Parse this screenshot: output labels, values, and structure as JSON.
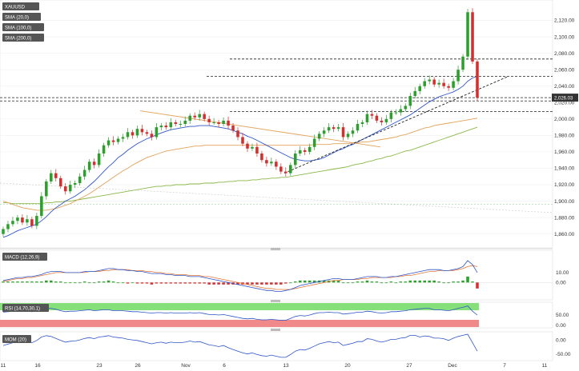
{
  "symbol": "XAUUSD",
  "colors": {
    "up": "#2e9e2e",
    "down": "#d32f2f",
    "sma20": "#2f55c8",
    "sma100": "#e2a25c",
    "sma200": "#8ab84a",
    "macd_line": "#2f55c8",
    "macd_signal": "#e0783a",
    "rsi_line": "#2f55c8",
    "rsi_upper_band": "#86e07a",
    "rsi_lower_band": "#f08a8a",
    "mom_line": "#2f55c8",
    "price_tag": "#333333"
  },
  "legend": [
    {
      "label": "XAUUSD"
    },
    {
      "label": "SMA (20,0)"
    },
    {
      "label": "SMA (100,0)"
    },
    {
      "label": "SMA (200,0)"
    }
  ],
  "last_price_label": "2,026.03",
  "price_axis_ticks": [
    "2,120.00",
    "2,100.00",
    "2,080.00",
    "2,060.00",
    "2,040.00",
    "2,020.00",
    "2,000.00",
    "1,980.00",
    "1,960.00",
    "1,940.00",
    "1,920.00",
    "1,900.00",
    "1,880.00",
    "1,860.00"
  ],
  "x_axis_ticks": [
    "11",
    "16",
    "23",
    "26",
    "Nov",
    "6",
    "13",
    "20",
    "27",
    "Dec",
    "7",
    "11"
  ],
  "macd": {
    "label": "MACD (12,26,9)",
    "ticks": [
      "10.00",
      "0.00"
    ]
  },
  "rsi": {
    "label": "RSI (14,70,30,1)",
    "ticks": [
      "50.00",
      "0.00"
    ]
  },
  "mom": {
    "label": "MOM (20)",
    "ticks": [
      "0.00",
      "-50.00"
    ]
  },
  "chart_data": {
    "type": "candlestick",
    "instrument": "XAUUSD",
    "x_ticks": [
      "11",
      "16",
      "23",
      "26",
      "Nov",
      "6",
      "13",
      "20",
      "27",
      "Dec",
      "7",
      "11"
    ],
    "ylim": [
      1848,
      2140
    ],
    "close": [
      1866,
      1872,
      1876,
      1880,
      1874,
      1878,
      1870,
      1882,
      1906,
      1924,
      1934,
      1928,
      1918,
      1912,
      1920,
      1922,
      1930,
      1938,
      1948,
      1944,
      1958,
      1968,
      1974,
      1972,
      1976,
      1978,
      1984,
      1980,
      1988,
      1984,
      1982,
      1978,
      1990,
      1992,
      1990,
      1996,
      1994,
      1994,
      1998,
      2004,
      2002,
      2006,
      2000,
      1996,
      1996,
      1994,
      1998,
      1992,
      1986,
      1978,
      1970,
      1964,
      1966,
      1958,
      1950,
      1946,
      1948,
      1942,
      1936,
      1934,
      1944,
      1958,
      1962,
      1960,
      1966,
      1976,
      1982,
      1986,
      1990,
      1988,
      1990,
      1978,
      1982,
      1986,
      1994,
      1996,
      2006,
      2004,
      1998,
      1996,
      2000,
      2008,
      2008,
      2012,
      2016,
      2028,
      2034,
      2040,
      2046,
      2048,
      2042,
      2044,
      2040,
      2038,
      2046,
      2060,
      2076,
      2130,
      2070,
      2026
    ],
    "sma20": [
      1856,
      1858,
      1861,
      1864,
      1866,
      1868,
      1870,
      1872,
      1876,
      1881,
      1887,
      1892,
      1896,
      1900,
      1903,
      1906,
      1910,
      1914,
      1919,
      1924,
      1930,
      1936,
      1942,
      1947,
      1953,
      1957,
      1962,
      1966,
      1970,
      1973,
      1976,
      1978,
      1981,
      1983,
      1985,
      1987,
      1988,
      1989,
      1990,
      1991,
      1991,
      1992,
      1992,
      1992,
      1991,
      1990,
      1989,
      1988,
      1986,
      1984,
      1982,
      1979,
      1977,
      1974,
      1971,
      1968,
      1965,
      1962,
      1959,
      1956,
      1953,
      1951,
      1950,
      1949,
      1949,
      1950,
      1951,
      1953,
      1956,
      1959,
      1962,
      1964,
      1967,
      1969,
      1972,
      1975,
      1978,
      1981,
      1984,
      1987,
      1990,
      1993,
      1996,
      1999,
      2002,
      2005,
      2009,
      2013,
      2017,
      2021,
      2024,
      2027,
      2029,
      2031,
      2033,
      2036,
      2040,
      2046,
      2050,
      2052
    ],
    "sma100": [
      1900,
      1898,
      1896,
      1894,
      1892,
      1891,
      1890,
      1889,
      1889,
      1889,
      1890,
      1891,
      1893,
      1895,
      1897,
      1900,
      1903,
      1906,
      1909,
      1913,
      1917,
      1921,
      1925,
      1929,
      1933,
      1937,
      1940,
      1944,
      1947,
      1950,
      1953,
      1955,
      1957,
      1959,
      1961,
      1962,
      1963,
      1964,
      1965,
      1966,
      1967,
      1967,
      1968,
      1968,
      1968,
      1968,
      1968,
      1968,
      1968,
      1968,
      1968,
      1968,
      1968,
      1968,
      1968,
      1968,
      1968,
      1968,
      1968,
      1968,
      1968,
      1968,
      1968,
      1968,
      1968,
      1969,
      1969,
      1969,
      1969,
      1970,
      1970,
      1970,
      1970,
      1971,
      1971,
      1972,
      1972,
      1973,
      1974,
      1975,
      1976,
      1977,
      1978,
      1980,
      1981,
      1983,
      1985,
      1987,
      1989,
      1990,
      1992,
      1993,
      1994,
      1995,
      1996,
      1997,
      1998,
      1999,
      2000,
      2001
    ],
    "sma200": [
      1898,
      1898,
      1897,
      1897,
      1897,
      1897,
      1897,
      1897,
      1897,
      1898,
      1898,
      1899,
      1899,
      1900,
      1900,
      1901,
      1902,
      1903,
      1904,
      1905,
      1906,
      1907,
      1908,
      1909,
      1910,
      1911,
      1912,
      1913,
      1914,
      1915,
      1916,
      1917,
      1918,
      1918,
      1919,
      1919,
      1920,
      1920,
      1920,
      1921,
      1921,
      1921,
      1922,
      1922,
      1922,
      1923,
      1923,
      1924,
      1924,
      1925,
      1925,
      1925,
      1926,
      1926,
      1927,
      1927,
      1928,
      1928,
      1929,
      1929,
      1930,
      1931,
      1932,
      1933,
      1934,
      1935,
      1936,
      1937,
      1938,
      1939,
      1940,
      1941,
      1942,
      1944,
      1945,
      1946,
      1948,
      1949,
      1951,
      1952,
      1954,
      1955,
      1957,
      1959,
      1961,
      1962,
      1964,
      1966,
      1968,
      1970,
      1972,
      1974,
      1976,
      1978,
      1980,
      1982,
      1984,
      1986,
      1988,
      1990
    ],
    "horizontal_levels": [
      2073,
      2052,
      2022,
      2026,
      2009
    ],
    "macd": {
      "ylim": [
        -15,
        30
      ],
      "line": [
        2,
        3,
        4,
        5,
        5,
        6,
        6,
        7,
        8,
        10,
        11,
        11,
        11,
        10,
        10,
        10,
        10,
        11,
        11,
        11,
        12,
        13,
        14,
        14,
        13,
        13,
        12,
        12,
        11,
        11,
        10,
        9,
        9,
        9,
        8,
        8,
        7,
        7,
        7,
        6,
        6,
        6,
        5,
        4,
        3,
        2,
        1,
        0,
        -1,
        -2,
        -3,
        -4,
        -5,
        -6,
        -7,
        -8,
        -8,
        -9,
        -9,
        -8,
        -7,
        -5,
        -3,
        -2,
        -1,
        0,
        1,
        2,
        3,
        4,
        4,
        3,
        3,
        3,
        4,
        5,
        6,
        6,
        6,
        5,
        5,
        6,
        6,
        7,
        8,
        9,
        10,
        11,
        12,
        13,
        13,
        13,
        12,
        12,
        13,
        14,
        16,
        22,
        18,
        10
      ],
      "signal": [
        1,
        2,
        3,
        4,
        4,
        5,
        5,
        6,
        7,
        8,
        9,
        10,
        10,
        10,
        10,
        10,
        10,
        10,
        11,
        11,
        11,
        12,
        12,
        13,
        13,
        13,
        13,
        12,
        12,
        12,
        11,
        11,
        10,
        10,
        9,
        9,
        8,
        8,
        8,
        7,
        7,
        7,
        6,
        6,
        5,
        4,
        3,
        2,
        1,
        0,
        -1,
        -2,
        -3,
        -4,
        -5,
        -6,
        -6,
        -7,
        -7,
        -7,
        -7,
        -6,
        -5,
        -4,
        -3,
        -2,
        -1,
        0,
        1,
        2,
        2,
        3,
        3,
        3,
        3,
        4,
        4,
        5,
        5,
        5,
        5,
        5,
        6,
        6,
        7,
        7,
        8,
        9,
        10,
        11,
        11,
        12,
        12,
        12,
        12,
        13,
        14,
        16,
        17,
        16
      ],
      "histogram": [
        1,
        1,
        1,
        1,
        1,
        1,
        1,
        1,
        1,
        2,
        2,
        1,
        1,
        0,
        0,
        0,
        0,
        1,
        0,
        0,
        1,
        1,
        2,
        1,
        0,
        0,
        -1,
        0,
        -1,
        -1,
        -1,
        -2,
        -1,
        -1,
        -1,
        -1,
        -1,
        -1,
        -1,
        -1,
        -1,
        -1,
        -1,
        -2,
        -2,
        -2,
        -2,
        -2,
        -2,
        -2,
        -2,
        -2,
        -2,
        -2,
        -2,
        -2,
        -2,
        -2,
        -2,
        -1,
        0,
        1,
        2,
        2,
        2,
        2,
        2,
        2,
        2,
        2,
        2,
        0,
        0,
        0,
        1,
        1,
        2,
        1,
        1,
        0,
        0,
        1,
        0,
        1,
        1,
        2,
        2,
        2,
        2,
        2,
        2,
        1,
        0,
        0,
        1,
        1,
        2,
        6,
        1,
        -6
      ]
    },
    "rsi": {
      "ylim": [
        0,
        100
      ],
      "upper": 70,
      "lower": 30,
      "values": [
        62,
        64,
        66,
        68,
        66,
        68,
        64,
        68,
        74,
        78,
        78,
        74,
        68,
        64,
        66,
        66,
        68,
        70,
        72,
        68,
        70,
        72,
        72,
        68,
        68,
        68,
        66,
        64,
        64,
        62,
        60,
        58,
        60,
        60,
        58,
        60,
        58,
        58,
        58,
        60,
        58,
        60,
        56,
        52,
        52,
        50,
        52,
        48,
        44,
        40,
        36,
        34,
        36,
        32,
        30,
        30,
        32,
        30,
        28,
        28,
        36,
        44,
        48,
        46,
        50,
        56,
        60,
        60,
        62,
        60,
        60,
        54,
        56,
        58,
        62,
        62,
        66,
        64,
        60,
        58,
        60,
        64,
        64,
        66,
        68,
        72,
        74,
        76,
        78,
        78,
        72,
        72,
        70,
        68,
        72,
        78,
        82,
        88,
        66,
        50
      ]
    },
    "momentum": {
      "ylim": [
        -65,
        20
      ],
      "values": [
        -20,
        -15,
        -10,
        -5,
        -8,
        -5,
        -10,
        -2,
        10,
        15,
        12,
        5,
        -2,
        -8,
        -5,
        -4,
        0,
        5,
        8,
        4,
        10,
        12,
        15,
        10,
        8,
        6,
        2,
        0,
        -2,
        -6,
        -10,
        -14,
        -10,
        -8,
        -12,
        -8,
        -10,
        -10,
        -8,
        -4,
        -8,
        -6,
        -12,
        -18,
        -20,
        -24,
        -20,
        -28,
        -34,
        -40,
        -46,
        -50,
        -46,
        -52,
        -56,
        -58,
        -54,
        -58,
        -62,
        -62,
        -52,
        -40,
        -34,
        -36,
        -30,
        -22,
        -14,
        -10,
        -6,
        -10,
        -8,
        -20,
        -16,
        -12,
        -6,
        -6,
        4,
        2,
        -4,
        -8,
        -4,
        2,
        2,
        6,
        8,
        16,
        16,
        10,
        14,
        12,
        6,
        6,
        4,
        -2,
        6,
        12,
        16,
        20,
        -10,
        -40
      ]
    }
  }
}
